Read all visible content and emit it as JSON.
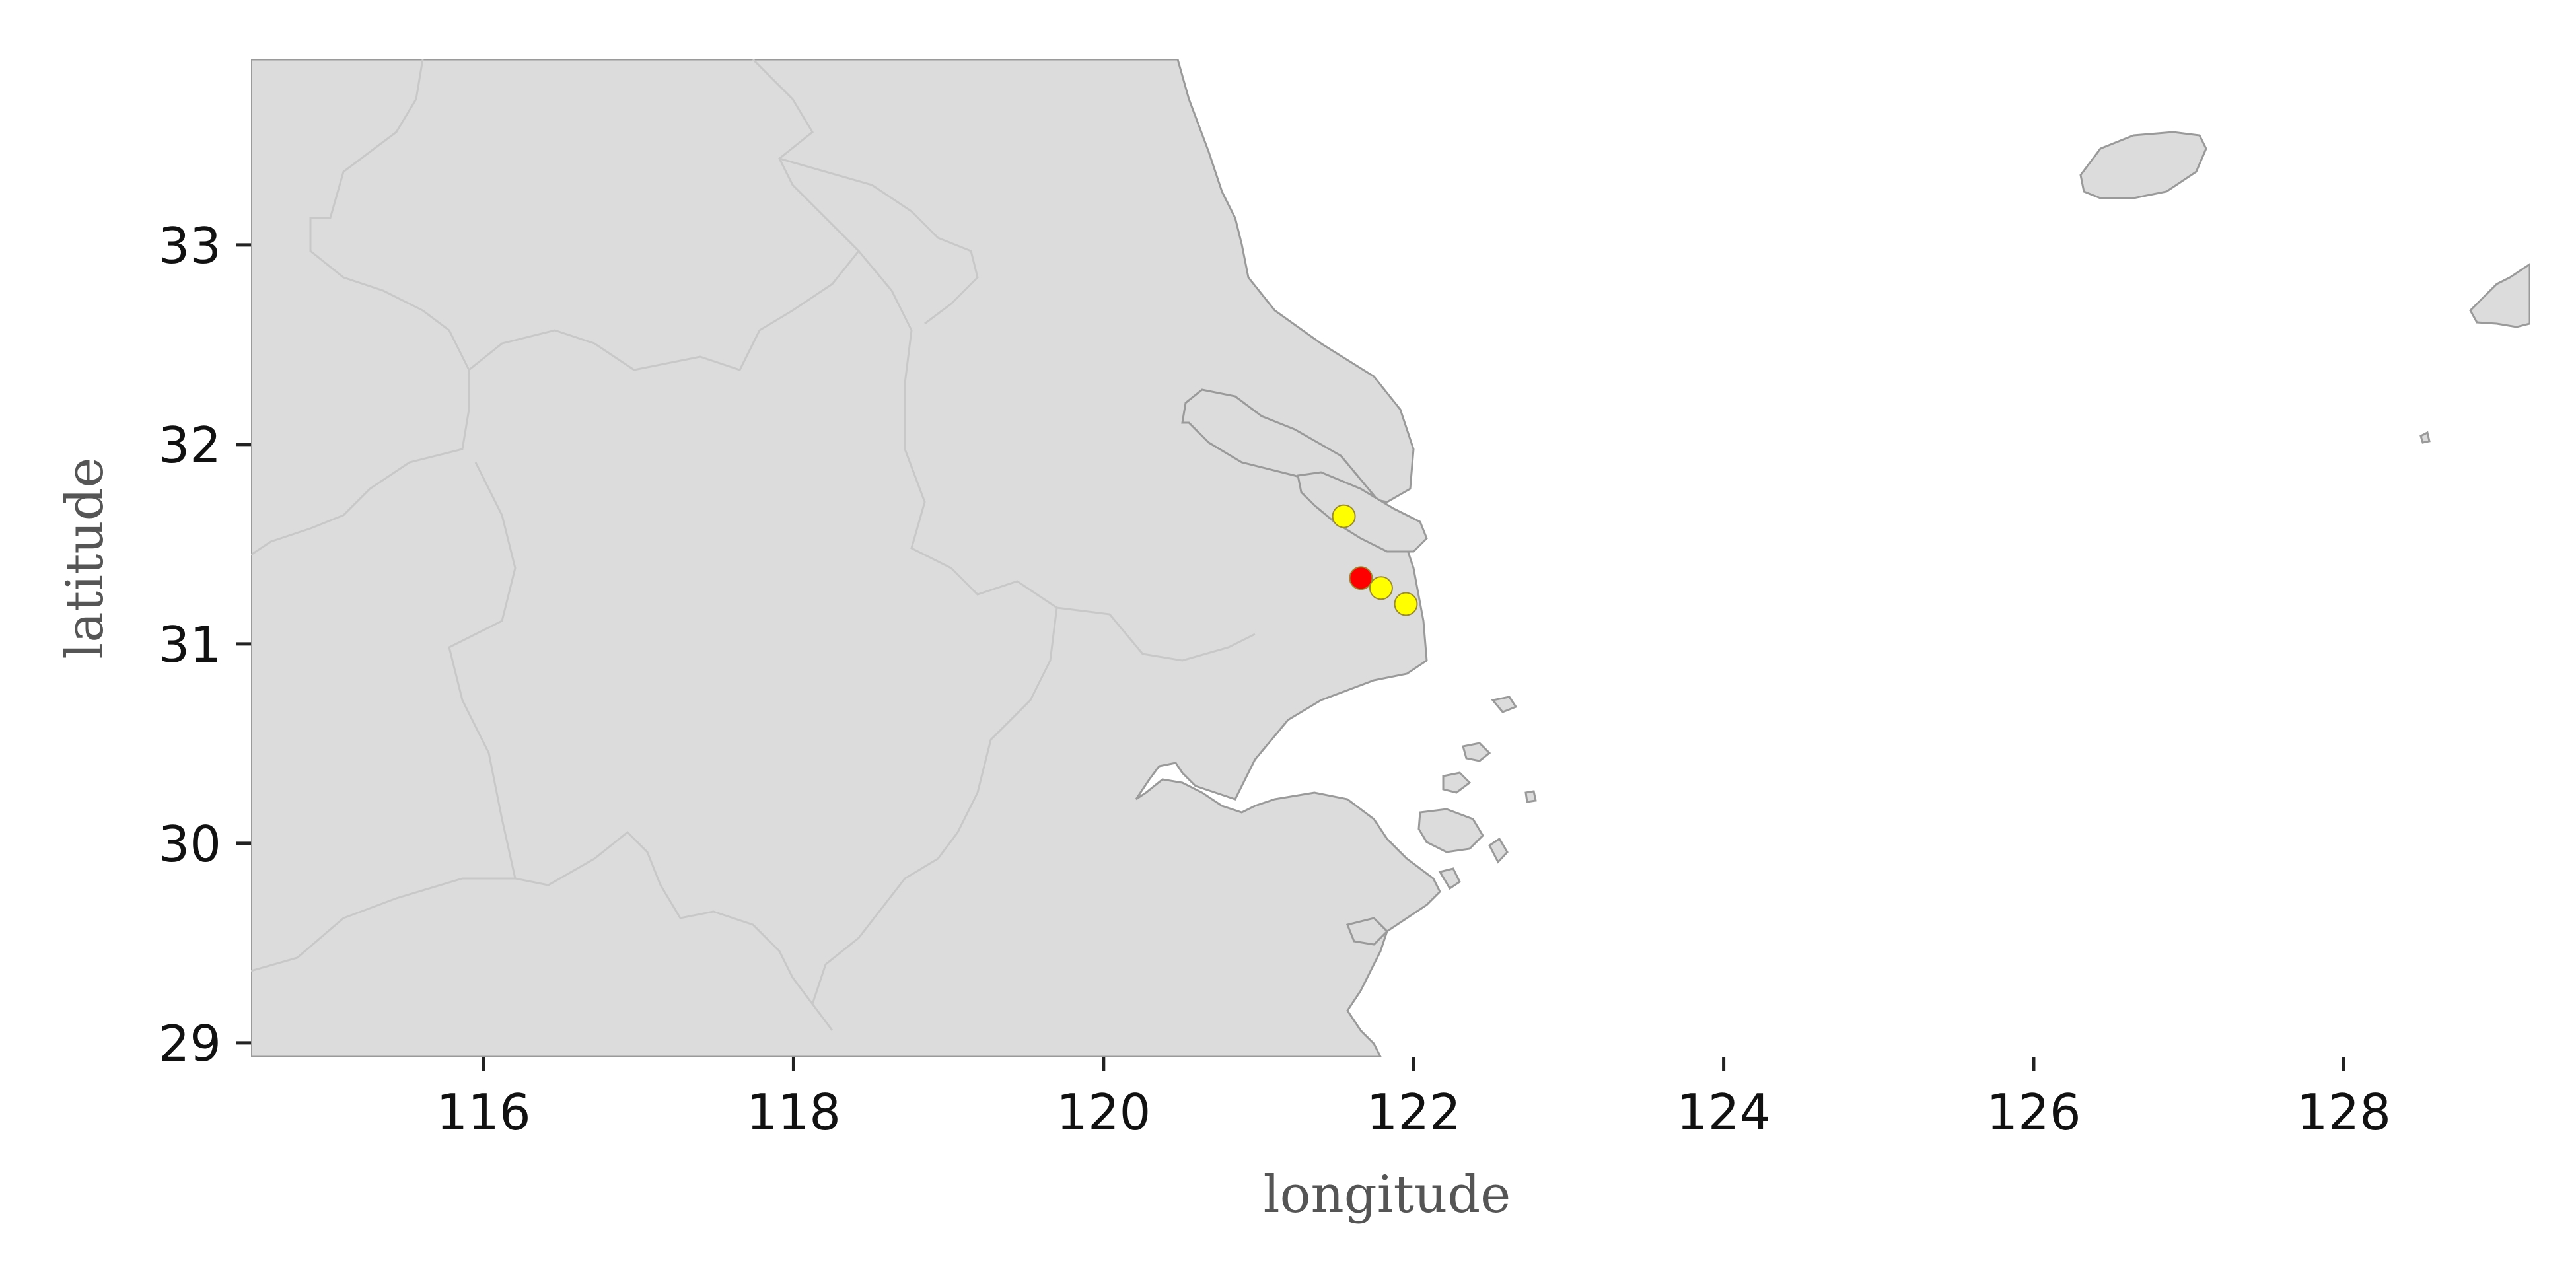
{
  "chart_data": {
    "type": "scatter",
    "xlabel": "longitude",
    "ylabel": "latitude",
    "xlim": [
      114.5,
      129.2
    ],
    "ylim": [
      28.93,
      33.93
    ],
    "x_ticks": [
      116,
      118,
      120,
      122,
      124,
      126,
      128
    ],
    "y_ticks": [
      29,
      30,
      31,
      32,
      33
    ],
    "grid": false,
    "legend": "none",
    "basemap": "land with province/country boundaries (light gray) around the Yangtze River estuary, East China Sea",
    "series": [
      {
        "color": "#ff0000",
        "points": [
          {
            "x": 121.66,
            "y": 31.33
          }
        ]
      },
      {
        "color": "#ffff00",
        "points": [
          {
            "x": 121.55,
            "y": 31.64
          },
          {
            "x": 121.79,
            "y": 31.28
          },
          {
            "x": 121.95,
            "y": 31.2
          }
        ]
      }
    ],
    "colors": {
      "land": "#dcdcdc",
      "coastline": "#9a9a9a",
      "boundary": "#c8c8c8"
    }
  }
}
